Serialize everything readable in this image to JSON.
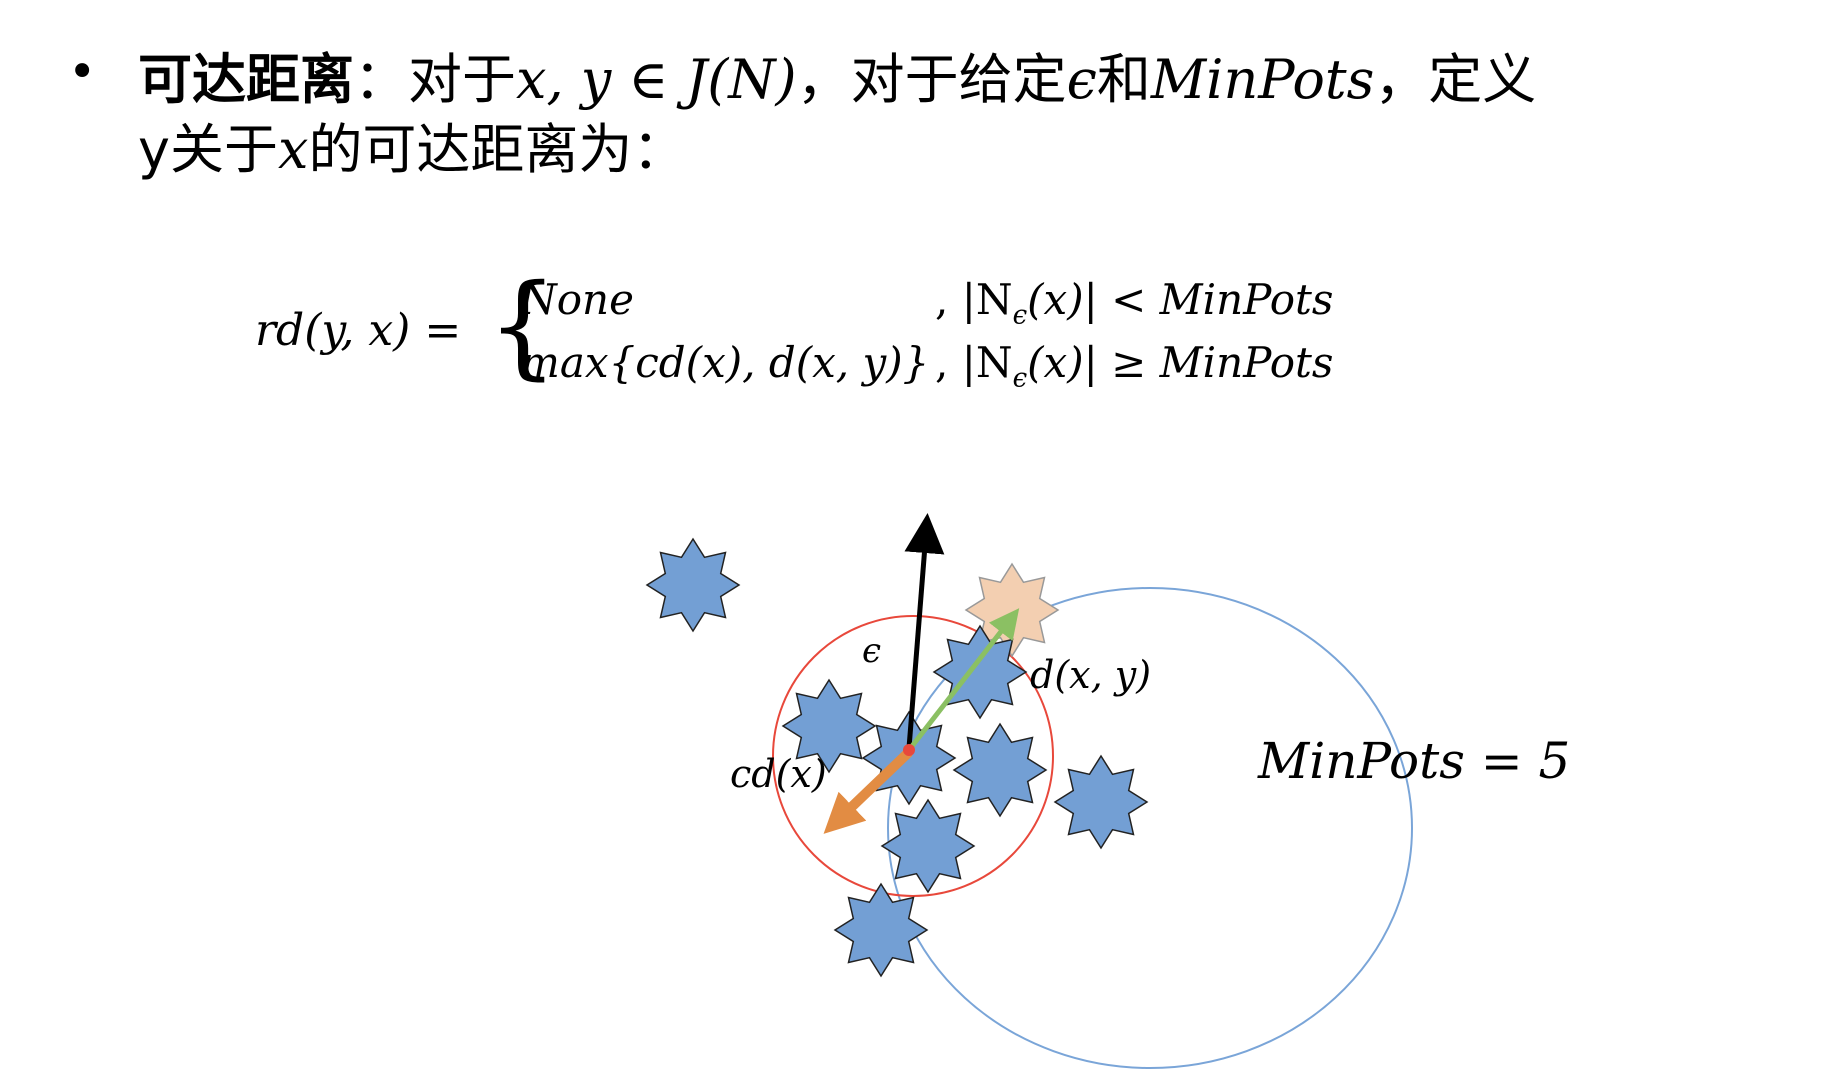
{
  "heading": {
    "bullet": "•",
    "term": "可达距离",
    "colon": "：",
    "line1_text_a": "对于",
    "line1_math_a": "x, y ∈ J(N)",
    "line1_text_b": "，对于给定",
    "line1_math_b": "ϵ",
    "line1_text_c": "和",
    "line1_math_c": "MinPots",
    "line1_text_d": "，定义",
    "line2_text_a": "y关于",
    "line2_math_a": "x",
    "line2_text_b": "的可达距离为："
  },
  "formula": {
    "lhs": "rd(y, x) =",
    "case1_value": "None",
    "case1_condition": ", |N",
    "case1_condition_sub": "ϵ",
    "case1_condition_rest": "(x)| < MinPots",
    "case2_value": "max{cd(x), d(x, y)}",
    "case2_condition": ", |N",
    "case2_condition_sub": "ϵ",
    "case2_condition_rest": "(x)| ≥ MinPots"
  },
  "diagram": {
    "epsilon_label": "ϵ",
    "dxy_label": "d(x, y)",
    "cdx_label": "cd(x)",
    "minpots_label": "MinPots = 5",
    "colors": {
      "star_fill": "#739fd4",
      "star_stroke": "#222222",
      "highlight_star_fill": "#f3cfb1",
      "highlight_star_stroke": "#999999",
      "red_circle": "#e8483b",
      "blue_ellipse": "#7aa5d8",
      "black_arrow": "#000000",
      "green_arrow": "#8bc063",
      "orange_arrow": "#e28c43",
      "center_dot": "#e8483b"
    }
  }
}
